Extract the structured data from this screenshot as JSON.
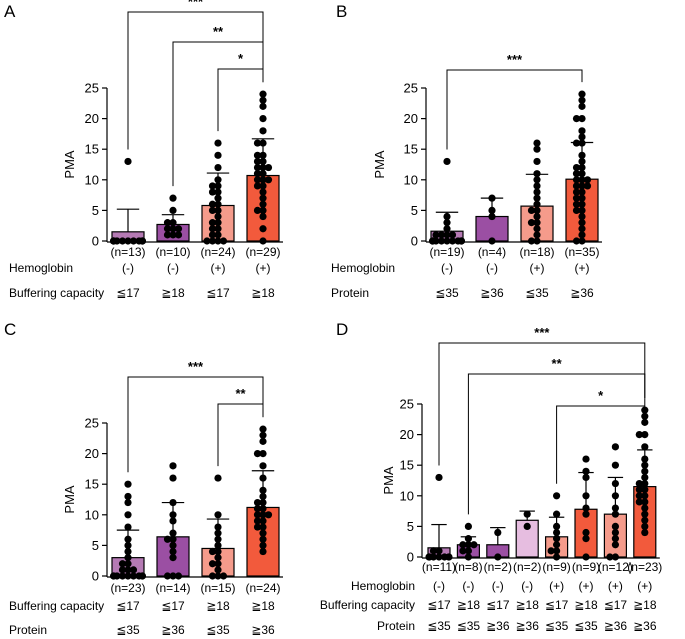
{
  "chart_data": [
    {
      "panel": "A",
      "type": "bar",
      "ylabel": "PMA",
      "ylim": [
        0,
        25
      ],
      "yticks": [
        0,
        5,
        10,
        15,
        20,
        25
      ],
      "n_labels": [
        "(n=13)",
        "(n=10)",
        "(n=24)",
        "(n=29)"
      ],
      "values": [
        1.5,
        2.7,
        5.8,
        10.7
      ],
      "sd": [
        3.7,
        1.6,
        5.3,
        6.0
      ],
      "points": [
        [
          13,
          0,
          0,
          0,
          0,
          0,
          0,
          0,
          0,
          0,
          0,
          0,
          0
        ],
        [
          7,
          5,
          3,
          3,
          2,
          2,
          2,
          1,
          1,
          1
        ],
        [
          16,
          14,
          12,
          10,
          9,
          9,
          8,
          8,
          7,
          6,
          6,
          5,
          5,
          4,
          3,
          3,
          2,
          2,
          1,
          1,
          0,
          0,
          0,
          0
        ],
        [
          24,
          23,
          22,
          20,
          18,
          16,
          16,
          14,
          14,
          13,
          13,
          12,
          12,
          12,
          11,
          11,
          10,
          10,
          10,
          9,
          9,
          8,
          7,
          6,
          5,
          5,
          4,
          2,
          0
        ]
      ],
      "fill_colors": [
        "#b57ab4",
        "#9b4fa3",
        "#f59b8b",
        "#f25a3c"
      ],
      "rows": [
        {
          "label": "Hemoglobin",
          "values": [
            "(-)",
            "(-)",
            "(+)",
            "(+)"
          ]
        },
        {
          "label": "Buffering capacity",
          "values": [
            "≦17",
            "≧18",
            "≦17",
            "≧18"
          ]
        }
      ],
      "significance": [
        {
          "from": 1,
          "to": 4,
          "label": "***"
        },
        {
          "from": 2,
          "to": 4,
          "label": "**"
        },
        {
          "from": 3,
          "to": 4,
          "label": "*"
        }
      ]
    },
    {
      "panel": "B",
      "type": "bar",
      "ylabel": "PMA",
      "ylim": [
        0,
        25
      ],
      "yticks": [
        0,
        5,
        10,
        15,
        20,
        25
      ],
      "n_labels": [
        "(n=19)",
        "(n=4)",
        "(n=18)",
        "(n=35)"
      ],
      "values": [
        1.6,
        4.0,
        5.7,
        10.1
      ],
      "sd": [
        3.1,
        3.0,
        5.2,
        6.0
      ],
      "points": [
        [
          13,
          4,
          3,
          2,
          1,
          1,
          1,
          1,
          0,
          0,
          0,
          0,
          0,
          0,
          0,
          0,
          0,
          0,
          0
        ],
        [
          7,
          5,
          4,
          0
        ],
        [
          16,
          15,
          13,
          11,
          10,
          9,
          8,
          7,
          6,
          5,
          5,
          4,
          3,
          3,
          2,
          1,
          0,
          0
        ],
        [
          24,
          23,
          22,
          20,
          20,
          18,
          17,
          16,
          16,
          14,
          13,
          12,
          12,
          11,
          11,
          10,
          10,
          10,
          9,
          9,
          9,
          8,
          8,
          7,
          7,
          6,
          6,
          5,
          5,
          4,
          3,
          2,
          1,
          0,
          0
        ]
      ],
      "fill_colors": [
        "#b57ab4",
        "#9b4fa3",
        "#f59b8b",
        "#f25a3c"
      ],
      "rows": [
        {
          "label": "Hemoglobin",
          "values": [
            "(-)",
            "(-)",
            "(+)",
            "(+)"
          ]
        },
        {
          "label": "Protein",
          "values": [
            "≦35",
            "≧36",
            "≦35",
            "≧36"
          ]
        }
      ],
      "significance": [
        {
          "from": 1,
          "to": 4,
          "label": "***"
        }
      ]
    },
    {
      "panel": "C",
      "type": "bar",
      "ylabel": "PMA",
      "ylim": [
        0,
        25
      ],
      "yticks": [
        0,
        5,
        10,
        15,
        20,
        25
      ],
      "n_labels": [
        "(n=23)",
        "(n=14)",
        "(n=15)",
        "(n=24)"
      ],
      "values": [
        3.0,
        6.4,
        4.5,
        11.2
      ],
      "sd": [
        4.5,
        5.6,
        4.8,
        6.0
      ],
      "points": [
        [
          15,
          13,
          12,
          10,
          8,
          6,
          5,
          4,
          3,
          2,
          2,
          1,
          1,
          1,
          0,
          0,
          0,
          0,
          0,
          0,
          0,
          0,
          0
        ],
        [
          18,
          16,
          12,
          10,
          9,
          7,
          6,
          6,
          5,
          4,
          3,
          0,
          0,
          0
        ],
        [
          16,
          10,
          8,
          7,
          6,
          5,
          4,
          4,
          3,
          2,
          2,
          1,
          0,
          0,
          0
        ],
        [
          24,
          23,
          22,
          20,
          20,
          18,
          16,
          14,
          13,
          12,
          12,
          11,
          11,
          10,
          10,
          10,
          9,
          9,
          8,
          8,
          7,
          6,
          5,
          4
        ]
      ],
      "fill_colors": [
        "#b57ab4",
        "#9b4fa3",
        "#f59b8b",
        "#f25a3c"
      ],
      "rows": [
        {
          "label": "Buffering capacity",
          "values": [
            "≦17",
            "≦17",
            "≧18",
            "≧18"
          ]
        },
        {
          "label": "Protein",
          "values": [
            "≦35",
            "≧36",
            "≦35",
            "≧36"
          ]
        }
      ],
      "significance": [
        {
          "from": 1,
          "to": 4,
          "label": "***"
        },
        {
          "from": 3,
          "to": 4,
          "label": "**"
        }
      ]
    },
    {
      "panel": "D",
      "type": "bar",
      "ylabel": "PMA",
      "ylim": [
        0,
        25
      ],
      "yticks": [
        0,
        5,
        10,
        15,
        20,
        25
      ],
      "n_labels": [
        "(n=11)",
        "(n=8)",
        "(n=2)",
        "(n=2)",
        "(n=9)",
        "(n=9)",
        "(n=12)",
        "(n=23)"
      ],
      "values": [
        1.5,
        2.0,
        2.0,
        6.0,
        3.3,
        7.8,
        7.0,
        11.5
      ],
      "sd": [
        3.8,
        1.3,
        2.8,
        1.5,
        3.2,
        6.0,
        6.0,
        6.0
      ],
      "points": [
        [
          13,
          1,
          1,
          0,
          0,
          0,
          0,
          0,
          0,
          0,
          0
        ],
        [
          5,
          3,
          2,
          2,
          2,
          1,
          1,
          0
        ],
        [
          4,
          0
        ],
        [
          7,
          5
        ],
        [
          10,
          7,
          5,
          4,
          3,
          2,
          1,
          1,
          0
        ],
        [
          16,
          14,
          13,
          10,
          8,
          7,
          4,
          3,
          0
        ],
        [
          18,
          15,
          12,
          10,
          8,
          7,
          5,
          4,
          3,
          2,
          0,
          0
        ],
        [
          24,
          23,
          22,
          20,
          20,
          18,
          16,
          15,
          14,
          13,
          12,
          12,
          11,
          11,
          10,
          10,
          9,
          9,
          8,
          7,
          6,
          5,
          4
        ]
      ],
      "fill_colors": [
        "#b57ab4",
        "#9b4fa3",
        "#9b4fa3",
        "#e6bde0",
        "#f59b8b",
        "#f25a3c",
        "#f59b8b",
        "#f25a3c"
      ],
      "rows": [
        {
          "label": "Hemoglobin",
          "values": [
            "(-)",
            "(-)",
            "(-)",
            "(-)",
            "(+)",
            "(+)",
            "(+)",
            "(+)"
          ]
        },
        {
          "label": "Buffering capacity",
          "values": [
            "≦17",
            "≧18",
            "≦17",
            "≧18",
            "≦17",
            "≧18",
            "≦17",
            "≧18"
          ]
        },
        {
          "label": "Protein",
          "values": [
            "≦35",
            "≦35",
            "≧36",
            "≧36",
            "≦35",
            "≦35",
            "≧36",
            "≧36"
          ]
        }
      ],
      "significance": [
        {
          "from": 1,
          "to": 8,
          "label": "***"
        },
        {
          "from": 2,
          "to": 8,
          "label": "**"
        },
        {
          "from": 5,
          "to": 8,
          "label": "*"
        }
      ]
    }
  ]
}
